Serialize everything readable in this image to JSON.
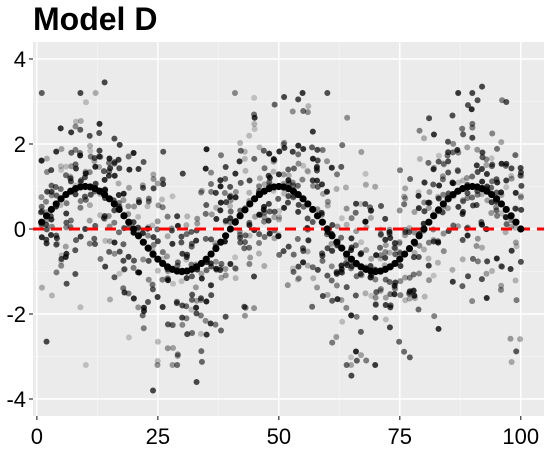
{
  "chart_data": {
    "type": "scatter",
    "title": "Model D",
    "xlabel": "",
    "ylabel": "",
    "xlim": [
      -0.8,
      104.8
    ],
    "ylim": [
      -4.4,
      4.4
    ],
    "x_ticks": [
      0,
      25,
      50,
      75,
      100
    ],
    "y_ticks": [
      -4,
      -2,
      0,
      2,
      4
    ],
    "grid": true,
    "legend": "none",
    "colors": {
      "panel": "#ebebeb",
      "grid_major": "#ffffff",
      "grid_minor": "#f4f4f4",
      "curve": "#000000",
      "reference_line": "#ff0000",
      "noise_points": "#000000"
    },
    "reference_line": {
      "type": "horizontal",
      "y": 0,
      "style": "dashed"
    },
    "curve": {
      "description_shape": "sine",
      "x": [
        1,
        2,
        3,
        4,
        5,
        6,
        7,
        8,
        9,
        10,
        11,
        12,
        13,
        14,
        15,
        16,
        17,
        18,
        19,
        20,
        21,
        22,
        23,
        24,
        25,
        26,
        27,
        28,
        29,
        30,
        31,
        32,
        33,
        34,
        35,
        36,
        37,
        38,
        39,
        40,
        41,
        42,
        43,
        44,
        45,
        46,
        47,
        48,
        49,
        50,
        51,
        52,
        53,
        54,
        55,
        56,
        57,
        58,
        59,
        60,
        61,
        62,
        63,
        64,
        65,
        66,
        67,
        68,
        69,
        70,
        71,
        72,
        73,
        74,
        75,
        76,
        77,
        78,
        79,
        80,
        81,
        82,
        83,
        84,
        85,
        86,
        87,
        88,
        89,
        90,
        91,
        92,
        93,
        94,
        95,
        96,
        97,
        98,
        99,
        100
      ],
      "y": [
        0.16,
        0.31,
        0.46,
        0.59,
        0.71,
        0.81,
        0.89,
        0.95,
        0.99,
        1.0,
        0.99,
        0.95,
        0.89,
        0.81,
        0.71,
        0.59,
        0.46,
        0.31,
        0.16,
        0.0,
        -0.16,
        -0.31,
        -0.45,
        -0.59,
        -0.71,
        -0.81,
        -0.89,
        -0.95,
        -0.99,
        -1.0,
        -0.99,
        -0.95,
        -0.89,
        -0.81,
        -0.71,
        -0.59,
        -0.46,
        -0.31,
        -0.16,
        0.0,
        0.16,
        0.31,
        0.45,
        0.59,
        0.71,
        0.81,
        0.89,
        0.95,
        0.99,
        1.0,
        0.99,
        0.95,
        0.89,
        0.81,
        0.71,
        0.59,
        0.46,
        0.31,
        0.16,
        0.0,
        -0.16,
        -0.31,
        -0.45,
        -0.59,
        -0.71,
        -0.81,
        -0.89,
        -0.95,
        -0.99,
        -1.0,
        -0.99,
        -0.95,
        -0.89,
        -0.81,
        -0.71,
        -0.59,
        -0.46,
        -0.31,
        -0.16,
        0.0,
        0.16,
        0.31,
        0.45,
        0.59,
        0.71,
        0.81,
        0.89,
        0.95,
        0.99,
        1.0,
        0.99,
        0.95,
        0.89,
        0.81,
        0.71,
        0.59,
        0.46,
        0.31,
        0.16,
        0.0
      ]
    },
    "noise": {
      "points_per_x": 10,
      "spread_sd": 1.1,
      "outliers": [
        {
          "x": 14,
          "y": 3.45
        },
        {
          "x": 54,
          "y": 3.05
        },
        {
          "x": 92,
          "y": 3.35
        },
        {
          "x": 24,
          "y": -3.8
        },
        {
          "x": 33,
          "y": -3.6
        },
        {
          "x": 65,
          "y": -3.45
        },
        {
          "x": 2,
          "y": -2.65
        },
        {
          "x": 9,
          "y": 3.2
        }
      ]
    }
  }
}
